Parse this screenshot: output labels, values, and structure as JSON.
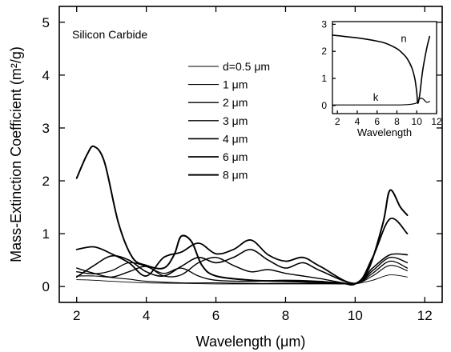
{
  "chart_data": {
    "type": "line",
    "title": "",
    "annotation": "Silicon Carbide",
    "xlabel": "Wavelength (μm)",
    "ylabel": "Mass-Extinction Coefficient (m²/g)",
    "xlim": [
      1.5,
      12.5
    ],
    "ylim": [
      -0.3,
      5.3
    ],
    "xticks": [
      2,
      4,
      6,
      8,
      10,
      12
    ],
    "yticks": [
      0,
      1,
      2,
      3,
      4,
      5
    ],
    "legend_position": "upper-middle",
    "series": [
      {
        "name": "d=0.5 μm",
        "width": 0.9,
        "x": [
          2.0,
          2.5,
          3,
          4,
          5,
          6,
          7,
          8,
          9,
          9.5,
          10,
          10.5,
          11,
          11.5
        ],
        "y": [
          0.13,
          0.12,
          0.1,
          0.07,
          0.06,
          0.05,
          0.05,
          0.05,
          0.05,
          0.05,
          0.05,
          0.12,
          0.22,
          0.18
        ]
      },
      {
        "name": "1 μm",
        "width": 1.1,
        "x": [
          2.0,
          2.5,
          3,
          3.5,
          4,
          5,
          6,
          7,
          8,
          9,
          10,
          10.5,
          11,
          11.5
        ],
        "y": [
          0.2,
          0.2,
          0.17,
          0.14,
          0.1,
          0.07,
          0.07,
          0.06,
          0.06,
          0.06,
          0.06,
          0.2,
          0.4,
          0.3
        ]
      },
      {
        "name": "2 μm",
        "width": 1.3,
        "x": [
          2.0,
          2.5,
          3,
          3.5,
          4,
          4.5,
          5,
          5.5,
          6,
          7,
          8,
          9,
          10,
          10.5,
          11,
          11.5
        ],
        "y": [
          0.28,
          0.24,
          0.3,
          0.45,
          0.38,
          0.25,
          0.35,
          0.2,
          0.12,
          0.1,
          0.12,
          0.1,
          0.06,
          0.25,
          0.48,
          0.35
        ]
      },
      {
        "name": "3 μm",
        "width": 1.4,
        "x": [
          2.0,
          2.5,
          3,
          3.5,
          4,
          4.5,
          5,
          5.5,
          6,
          6.5,
          7,
          7.5,
          8,
          8.5,
          9,
          10,
          10.5,
          11,
          11.5
        ],
        "y": [
          0.35,
          0.25,
          0.18,
          0.28,
          0.38,
          0.2,
          0.22,
          0.45,
          0.55,
          0.4,
          0.28,
          0.32,
          0.25,
          0.2,
          0.15,
          0.06,
          0.3,
          0.55,
          0.45
        ]
      },
      {
        "name": "4 μm",
        "width": 1.6,
        "x": [
          2.0,
          2.5,
          3,
          3.5,
          4,
          4.5,
          5,
          5.5,
          6,
          6.5,
          7,
          7.5,
          8,
          8.5,
          9,
          10,
          10.5,
          11,
          11.5
        ],
        "y": [
          0.18,
          0.4,
          0.58,
          0.5,
          0.28,
          0.2,
          0.38,
          0.55,
          0.45,
          0.55,
          0.7,
          0.5,
          0.35,
          0.45,
          0.3,
          0.06,
          0.35,
          0.6,
          0.6
        ]
      },
      {
        "name": "6 μm",
        "width": 1.8,
        "x": [
          2.0,
          2.5,
          3,
          3.5,
          4,
          4.5,
          5,
          5.5,
          6,
          6.5,
          7,
          7.5,
          8,
          8.5,
          9,
          10,
          10.5,
          11,
          11.5
        ],
        "y": [
          0.7,
          0.75,
          0.62,
          0.45,
          0.2,
          0.55,
          0.65,
          0.82,
          0.62,
          0.7,
          0.88,
          0.6,
          0.48,
          0.55,
          0.38,
          0.06,
          0.55,
          1.28,
          1.0
        ]
      },
      {
        "name": "8 μm",
        "width": 2.0,
        "x": [
          2.0,
          2.3,
          2.5,
          2.8,
          3.2,
          3.6,
          4,
          4.5,
          4.8,
          5,
          5.3,
          5.6,
          6,
          7,
          8,
          9,
          9.6,
          10,
          10.4,
          10.8,
          11,
          11.3,
          11.5
        ],
        "y": [
          2.05,
          2.5,
          2.65,
          2.35,
          1.2,
          0.55,
          0.4,
          0.35,
          0.6,
          0.95,
          0.85,
          0.4,
          0.2,
          0.12,
          0.1,
          0.08,
          0.07,
          0.05,
          0.35,
          1.2,
          1.82,
          1.5,
          1.35
        ]
      }
    ],
    "inset": {
      "xlabel": "Wavelength",
      "xlim": [
        1.5,
        12
      ],
      "ylim": [
        -0.3,
        3.1
      ],
      "xticks": [
        2,
        4,
        6,
        8,
        10,
        12
      ],
      "yticks": [
        0,
        1,
        2,
        3
      ],
      "series": [
        {
          "name": "n",
          "x": [
            1.5,
            2,
            4,
            6,
            7,
            8,
            8.5,
            9,
            9.5,
            9.8,
            10,
            10.1,
            10.3,
            10.6,
            11,
            11.3
          ],
          "y": [
            2.6,
            2.58,
            2.5,
            2.38,
            2.28,
            2.1,
            1.95,
            1.75,
            1.4,
            1.0,
            0.5,
            0.08,
            0.4,
            1.3,
            2.1,
            2.55
          ]
        },
        {
          "name": "k",
          "x": [
            1.5,
            4,
            6,
            8,
            9,
            9.5,
            10,
            10.3,
            10.6,
            11,
            11.3
          ],
          "y": [
            0.02,
            0.02,
            0.02,
            0.02,
            0.03,
            0.05,
            0.1,
            0.25,
            0.25,
            0.12,
            0.15
          ]
        }
      ]
    }
  }
}
